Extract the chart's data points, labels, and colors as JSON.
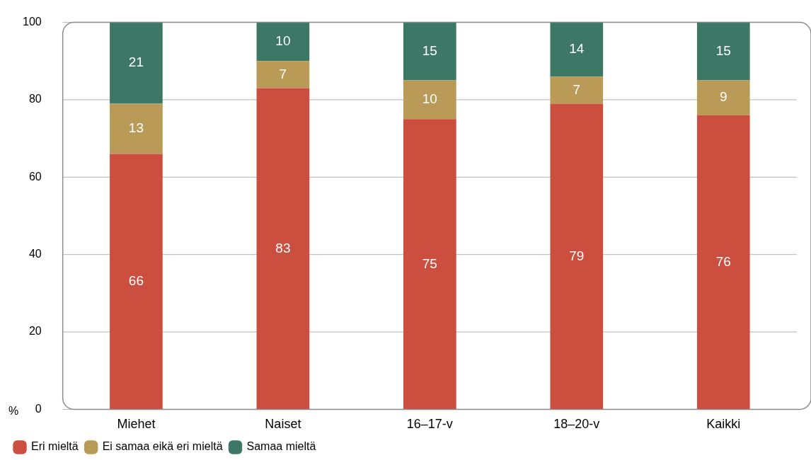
{
  "chart_data": {
    "type": "bar",
    "stacked": true,
    "ylabel": "%",
    "categories": [
      "Miehet",
      "Naiset",
      "16–17-v",
      "18–20-v",
      "Kaikki"
    ],
    "series": [
      {
        "name": "Eri mieltä",
        "color": "#cb4e3f",
        "values": [
          66,
          83,
          75,
          79,
          76
        ]
      },
      {
        "name": "Ei samaa eikä eri mieltä",
        "color": "#b99a57",
        "values": [
          13,
          7,
          10,
          7,
          9
        ]
      },
      {
        "name": "Samaa mieltä",
        "color": "#3d7866",
        "values": [
          21,
          10,
          15,
          14,
          15
        ]
      }
    ],
    "ylim": [
      0,
      100
    ],
    "yticks": [
      0,
      20,
      40,
      60,
      80,
      100
    ],
    "grid": "y",
    "legend": "bottom left",
    "data_labels": true
  }
}
